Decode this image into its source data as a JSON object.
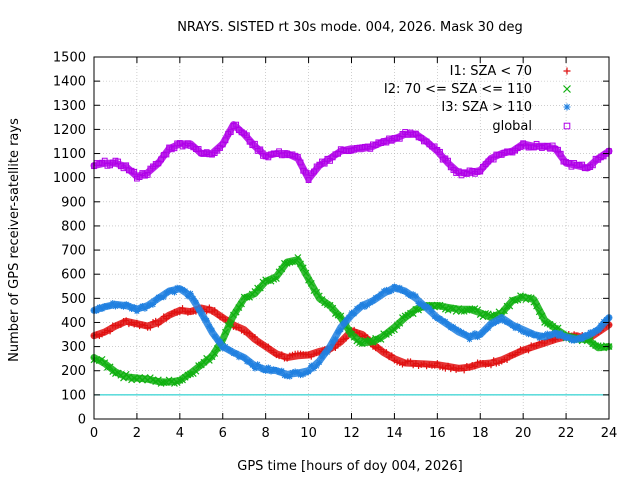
{
  "chart_data": {
    "type": "scatter",
    "title": "NRAYS. SISTED rt 30s mode. 004, 2026. Mask 30 deg",
    "xlabel": "GPS time [hours of doy 004, 2026]",
    "ylabel": "Number of GPS receiver-satellite rays",
    "xlim": [
      0,
      24
    ],
    "ylim": [
      0,
      1500
    ],
    "xticks": [
      0,
      2,
      4,
      6,
      8,
      10,
      12,
      14,
      16,
      18,
      20,
      22,
      24
    ],
    "yticks": [
      0,
      100,
      200,
      300,
      400,
      500,
      600,
      700,
      800,
      900,
      1000,
      1100,
      1200,
      1300,
      1400,
      1500
    ],
    "grid": true,
    "legend_position": "top-right",
    "threshold_line": {
      "y": 100,
      "color": "#00c8c8"
    },
    "series": [
      {
        "name": "I1: SZA < 70",
        "color": "#e01010",
        "marker": "+",
        "x": [
          0,
          0.5,
          1,
          1.5,
          2,
          2.5,
          3,
          3.5,
          4,
          4.5,
          5,
          5.5,
          6,
          6.5,
          7,
          7.5,
          8,
          8.5,
          9,
          9.5,
          10,
          10.5,
          11,
          11.5,
          12,
          12.5,
          13,
          13.5,
          14,
          14.5,
          15,
          15.5,
          16,
          16.5,
          17,
          17.5,
          18,
          18.5,
          19,
          19.5,
          20,
          20.5,
          21,
          21.5,
          22,
          22.5,
          23,
          23.5,
          24
        ],
        "y": [
          345,
          360,
          385,
          405,
          395,
          385,
          400,
          430,
          450,
          445,
          460,
          450,
          420,
          390,
          370,
          330,
          300,
          270,
          255,
          262,
          265,
          280,
          290,
          320,
          365,
          350,
          310,
          275,
          250,
          232,
          230,
          228,
          225,
          218,
          210,
          215,
          228,
          232,
          245,
          265,
          285,
          300,
          315,
          330,
          340,
          345,
          330,
          360,
          390
        ]
      },
      {
        "name": "I2: 70 <= SZA <= 110",
        "color": "#10b010",
        "marker": "x",
        "x": [
          0,
          0.5,
          1,
          1.5,
          2,
          2.5,
          3,
          3.5,
          4,
          4.5,
          5,
          5.5,
          6,
          6.5,
          7,
          7.5,
          8,
          8.5,
          9,
          9.5,
          10,
          10.5,
          11,
          11.5,
          12,
          12.5,
          13,
          13.5,
          14,
          14.5,
          15,
          15.5,
          16,
          16.5,
          17,
          17.5,
          18,
          18.5,
          19,
          19.5,
          20,
          20.5,
          21,
          21.5,
          22,
          22.5,
          23,
          23.5,
          24
        ],
        "y": [
          255,
          230,
          195,
          175,
          170,
          165,
          155,
          153,
          160,
          190,
          225,
          260,
          330,
          430,
          500,
          520,
          570,
          590,
          650,
          660,
          580,
          500,
          470,
          420,
          350,
          315,
          320,
          345,
          380,
          420,
          455,
          470,
          470,
          462,
          455,
          455,
          440,
          420,
          440,
          490,
          505,
          495,
          410,
          375,
          345,
          335,
          330,
          295,
          300
        ]
      },
      {
        "name": "I3: SZA > 110",
        "color": "#2080e0",
        "marker": "*",
        "x": [
          0,
          0.5,
          1,
          1.5,
          2,
          2.5,
          3,
          3.5,
          4,
          4.5,
          5,
          5.5,
          6,
          6.5,
          7,
          7.5,
          8,
          8.5,
          9,
          9.5,
          10,
          10.5,
          11,
          11.5,
          12,
          12.5,
          13,
          13.5,
          14,
          14.5,
          15,
          15.5,
          16,
          16.5,
          17,
          17.5,
          18,
          18.5,
          19,
          19.5,
          20,
          20.5,
          21,
          21.5,
          22,
          22.5,
          23,
          23.5,
          24
        ],
        "y": [
          450,
          465,
          475,
          470,
          455,
          470,
          500,
          530,
          540,
          510,
          440,
          360,
          300,
          275,
          255,
          220,
          205,
          200,
          185,
          190,
          200,
          240,
          300,
          380,
          430,
          470,
          490,
          520,
          545,
          530,
          500,
          460,
          420,
          390,
          360,
          340,
          350,
          395,
          420,
          390,
          370,
          350,
          340,
          355,
          340,
          330,
          345,
          370,
          420
        ]
      },
      {
        "name": "global",
        "color": "#b000e8",
        "marker": "square",
        "x": [
          0,
          0.5,
          1,
          1.5,
          2,
          2.5,
          3,
          3.5,
          4,
          4.5,
          5,
          5.5,
          6,
          6.5,
          7,
          7.5,
          8,
          8.5,
          9,
          9.5,
          10,
          10.5,
          11,
          11.5,
          12,
          12.5,
          13,
          13.5,
          14,
          14.5,
          15,
          15.5,
          16,
          16.5,
          17,
          17.5,
          18,
          18.5,
          19,
          19.5,
          20,
          20.5,
          21,
          21.5,
          22,
          22.5,
          23,
          23.5,
          24
        ],
        "y": [
          1050,
          1060,
          1060,
          1045,
          1005,
          1020,
          1060,
          1120,
          1140,
          1140,
          1100,
          1100,
          1140,
          1220,
          1180,
          1130,
          1090,
          1100,
          1100,
          1080,
          995,
          1050,
          1080,
          1110,
          1120,
          1120,
          1130,
          1150,
          1160,
          1180,
          1180,
          1150,
          1110,
          1060,
          1020,
          1020,
          1030,
          1080,
          1100,
          1110,
          1140,
          1130,
          1130,
          1120,
          1060,
          1050,
          1040,
          1080,
          1110
        ]
      }
    ]
  }
}
